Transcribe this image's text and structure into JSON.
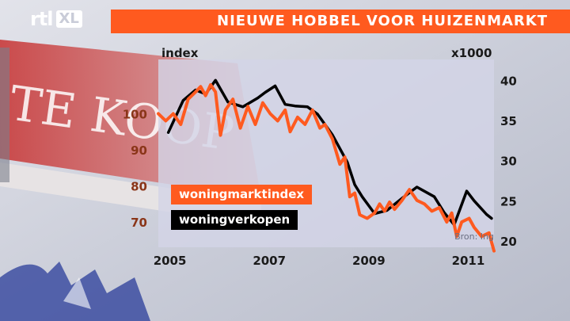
{
  "header": {
    "channel_logo": "rtl",
    "channel_logo_badge": "XL",
    "title": "NIEUWE HOBBEL VOOR HUIZENMARKT"
  },
  "colors": {
    "accent": "#ff5a1f",
    "series_index": "#ff5a1f",
    "series_sales": "#000000",
    "left_axis_ticks": "#8a3518",
    "right_axis_ticks": "#1a1a1a"
  },
  "chart_data": {
    "type": "line",
    "left_axis": {
      "title": "index",
      "ticks": [
        70,
        80,
        90,
        100
      ],
      "range": [
        63,
        115
      ]
    },
    "right_axis": {
      "title": "x1000",
      "ticks": [
        20,
        25,
        30,
        35,
        40
      ],
      "range": [
        19.2,
        42.6
      ]
    },
    "x_axis": {
      "ticks": [
        "2005",
        "2007",
        "2009",
        "2011"
      ],
      "range": [
        2004.8,
        2011.55
      ]
    },
    "legend": {
      "placement": "lower-left"
    },
    "source": "Bron: Ing",
    "series": [
      {
        "name": "woningmarktindex",
        "axis": "left",
        "points": [
          [
            2004.8,
            100
          ],
          [
            2004.95,
            98
          ],
          [
            2005.1,
            100
          ],
          [
            2005.25,
            97
          ],
          [
            2005.4,
            104
          ],
          [
            2005.55,
            106
          ],
          [
            2005.65,
            107.5
          ],
          [
            2005.75,
            105
          ],
          [
            2005.85,
            108
          ],
          [
            2005.95,
            106
          ],
          [
            2006.05,
            94
          ],
          [
            2006.15,
            101
          ],
          [
            2006.3,
            104
          ],
          [
            2006.45,
            96
          ],
          [
            2006.6,
            102
          ],
          [
            2006.75,
            97
          ],
          [
            2006.9,
            103
          ],
          [
            2007.05,
            100
          ],
          [
            2007.2,
            98
          ],
          [
            2007.35,
            101
          ],
          [
            2007.45,
            95
          ],
          [
            2007.6,
            99
          ],
          [
            2007.75,
            97
          ],
          [
            2007.9,
            101
          ],
          [
            2008.05,
            96
          ],
          [
            2008.15,
            97
          ],
          [
            2008.3,
            93
          ],
          [
            2008.45,
            86
          ],
          [
            2008.55,
            88
          ],
          [
            2008.65,
            77
          ],
          [
            2008.75,
            78
          ],
          [
            2008.85,
            72
          ],
          [
            2009.0,
            71
          ],
          [
            2009.15,
            72.5
          ],
          [
            2009.25,
            75
          ],
          [
            2009.35,
            73
          ],
          [
            2009.45,
            75.5
          ],
          [
            2009.55,
            73.5
          ],
          [
            2009.7,
            76
          ],
          [
            2009.85,
            79
          ],
          [
            2010.0,
            76
          ],
          [
            2010.15,
            75
          ],
          [
            2010.3,
            73
          ],
          [
            2010.45,
            74
          ],
          [
            2010.6,
            70
          ],
          [
            2010.7,
            72.5
          ],
          [
            2010.8,
            66
          ],
          [
            2010.9,
            70
          ],
          [
            2011.05,
            71
          ],
          [
            2011.15,
            68.5
          ],
          [
            2011.3,
            66
          ],
          [
            2011.45,
            67
          ],
          [
            2011.55,
            62
          ]
        ]
      },
      {
        "name": "woningverkopen",
        "axis": "right",
        "points": [
          [
            2005.0,
            33.5
          ],
          [
            2005.3,
            37.5
          ],
          [
            2005.55,
            38.8
          ],
          [
            2005.75,
            38.3
          ],
          [
            2005.95,
            40.0
          ],
          [
            2006.2,
            37.3
          ],
          [
            2006.5,
            36.7
          ],
          [
            2006.8,
            37.8
          ],
          [
            2006.95,
            38.5
          ],
          [
            2007.15,
            39.3
          ],
          [
            2007.35,
            37.0
          ],
          [
            2007.55,
            36.8
          ],
          [
            2007.8,
            36.7
          ],
          [
            2008.0,
            35.8
          ],
          [
            2008.3,
            33.2
          ],
          [
            2008.6,
            29.8
          ],
          [
            2008.75,
            27.0
          ],
          [
            2008.9,
            25.5
          ],
          [
            2009.15,
            23.4
          ],
          [
            2009.4,
            23.8
          ],
          [
            2009.7,
            25.3
          ],
          [
            2010.0,
            26.7
          ],
          [
            2010.35,
            25.5
          ],
          [
            2010.55,
            23.5
          ],
          [
            2010.75,
            22.0
          ],
          [
            2011.0,
            26.2
          ],
          [
            2011.15,
            25.0
          ],
          [
            2011.4,
            23.3
          ],
          [
            2011.5,
            22.8
          ]
        ]
      }
    ]
  }
}
